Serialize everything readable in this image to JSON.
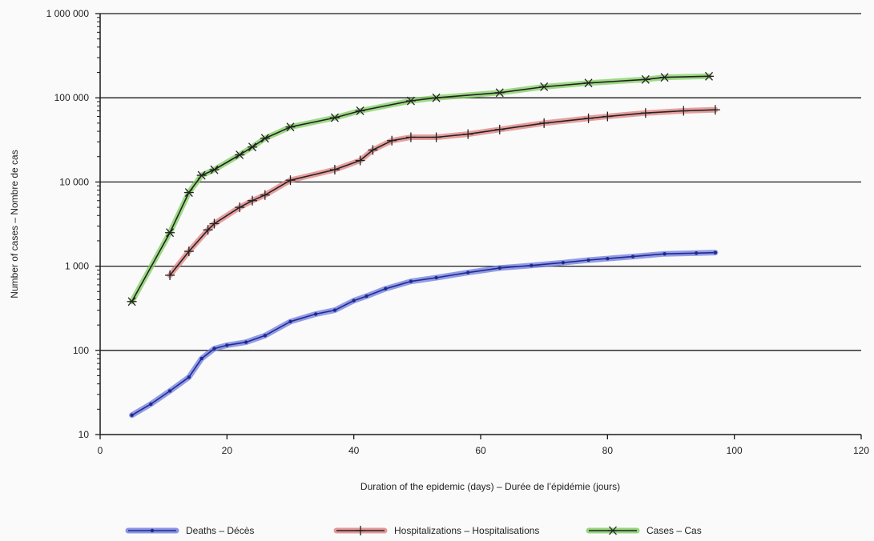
{
  "chart_data": {
    "type": "line",
    "title": "",
    "xlabel": "Duration of the epidemic (days) – Durée de l’épidémie (jours)",
    "ylabel": "Number of cases – Nombre de cas",
    "xlim": [
      0,
      120
    ],
    "ylim": [
      10,
      1000000
    ],
    "yscale": "log",
    "x_ticks": [
      0,
      20,
      40,
      60,
      80,
      100,
      120
    ],
    "x_tick_labels": [
      "0",
      "20",
      "40",
      "60",
      "80",
      "100",
      "120"
    ],
    "y_ticks": [
      10,
      100,
      1000,
      10000,
      100000,
      1000000
    ],
    "y_tick_labels": [
      "10",
      "100",
      "1 000",
      "10 000",
      "100 000",
      "1 000 000"
    ],
    "grid": "horizontal",
    "legend_position": "bottom",
    "series": [
      {
        "name": "Deaths – Décès",
        "color": "#1f2a8c",
        "highlight": "#6f7be0",
        "marker": "dot",
        "x": [
          5,
          8,
          11,
          14,
          16,
          18,
          20,
          23,
          26,
          30,
          34,
          37,
          40,
          42,
          45,
          49,
          53,
          58,
          63,
          68,
          73,
          77,
          80,
          84,
          89,
          94,
          97
        ],
        "y": [
          17,
          23,
          33,
          48,
          80,
          105,
          115,
          125,
          150,
          220,
          270,
          300,
          390,
          440,
          540,
          660,
          730,
          840,
          950,
          1020,
          1100,
          1180,
          1230,
          1300,
          1400,
          1430,
          1450
        ]
      },
      {
        "name": "Hospitalizations – Hospitalisations",
        "color": "#222222",
        "highlight": "#e07f7f",
        "marker": "plus",
        "x": [
          11,
          14,
          17,
          18,
          22,
          24,
          26,
          30,
          37,
          41,
          43,
          46,
          49,
          53,
          58,
          63,
          70,
          77,
          80,
          86,
          92,
          97
        ],
        "y": [
          780,
          1500,
          2700,
          3200,
          5000,
          6000,
          7000,
          10500,
          14000,
          18000,
          24000,
          31000,
          34000,
          34000,
          37000,
          42000,
          50000,
          57000,
          60000,
          66000,
          70000,
          72000
        ]
      },
      {
        "name": "Cases – Cas",
        "color": "#222222",
        "highlight": "#7fcd5f",
        "marker": "asterisk",
        "x": [
          5,
          11,
          14,
          16,
          18,
          22,
          24,
          26,
          30,
          37,
          41,
          49,
          53,
          63,
          70,
          77,
          86,
          89,
          96
        ],
        "y": [
          380,
          2500,
          7500,
          12000,
          14000,
          21000,
          26000,
          33000,
          45000,
          58000,
          70000,
          92000,
          100000,
          115000,
          135000,
          150000,
          165000,
          175000,
          180000
        ]
      }
    ]
  }
}
